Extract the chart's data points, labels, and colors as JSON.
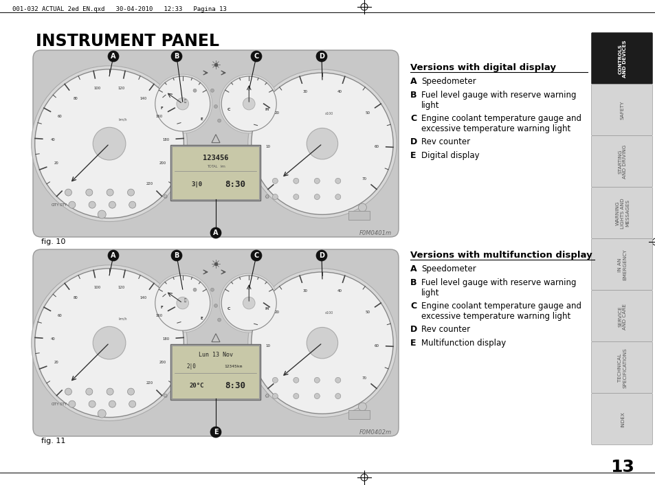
{
  "title": "INSTRUMENT PANEL",
  "header_text": "001-032 ACTUAL 2ed EN.qxd   30-04-2010   12:33   Pagina 13",
  "fig10_label": "fig. 10",
  "fig11_label": "fig. 11",
  "fig10_code": "F0M0401m",
  "fig11_code": "F0M0402m",
  "section1_title": "Versions with digital display",
  "section2_title": "Versions with multifunction display",
  "items_digital": [
    [
      "A",
      "Speedometer"
    ],
    [
      "B",
      "Fuel level gauge with reserve warning\nlight"
    ],
    [
      "C",
      "Engine coolant temperature gauge and\nexcessive temperature warning light"
    ],
    [
      "D",
      "Rev counter"
    ],
    [
      "E",
      "Digital display"
    ]
  ],
  "items_multi": [
    [
      "A",
      "Speedometer"
    ],
    [
      "B",
      "Fuel level gauge with reserve warning\nlight"
    ],
    [
      "C",
      "Engine coolant temperature gauge and\nexcessive temperature warning light"
    ],
    [
      "D",
      "Rev counter"
    ],
    [
      "E",
      "Multifunction display"
    ]
  ],
  "sidebar_items": [
    "CONTROLS\nAND DEVICES",
    "SAFETY",
    "STARTING\nAND DRIVING",
    "WARNING\nLIGHTS AND\nMESSAGES",
    "IN AN\nEMERGENCY",
    "SERVICE\nAND CARE",
    "TECHNICAL\nSPECIFICATIONS",
    "INDEX"
  ],
  "page_number": "13",
  "bg_color": "#ffffff"
}
